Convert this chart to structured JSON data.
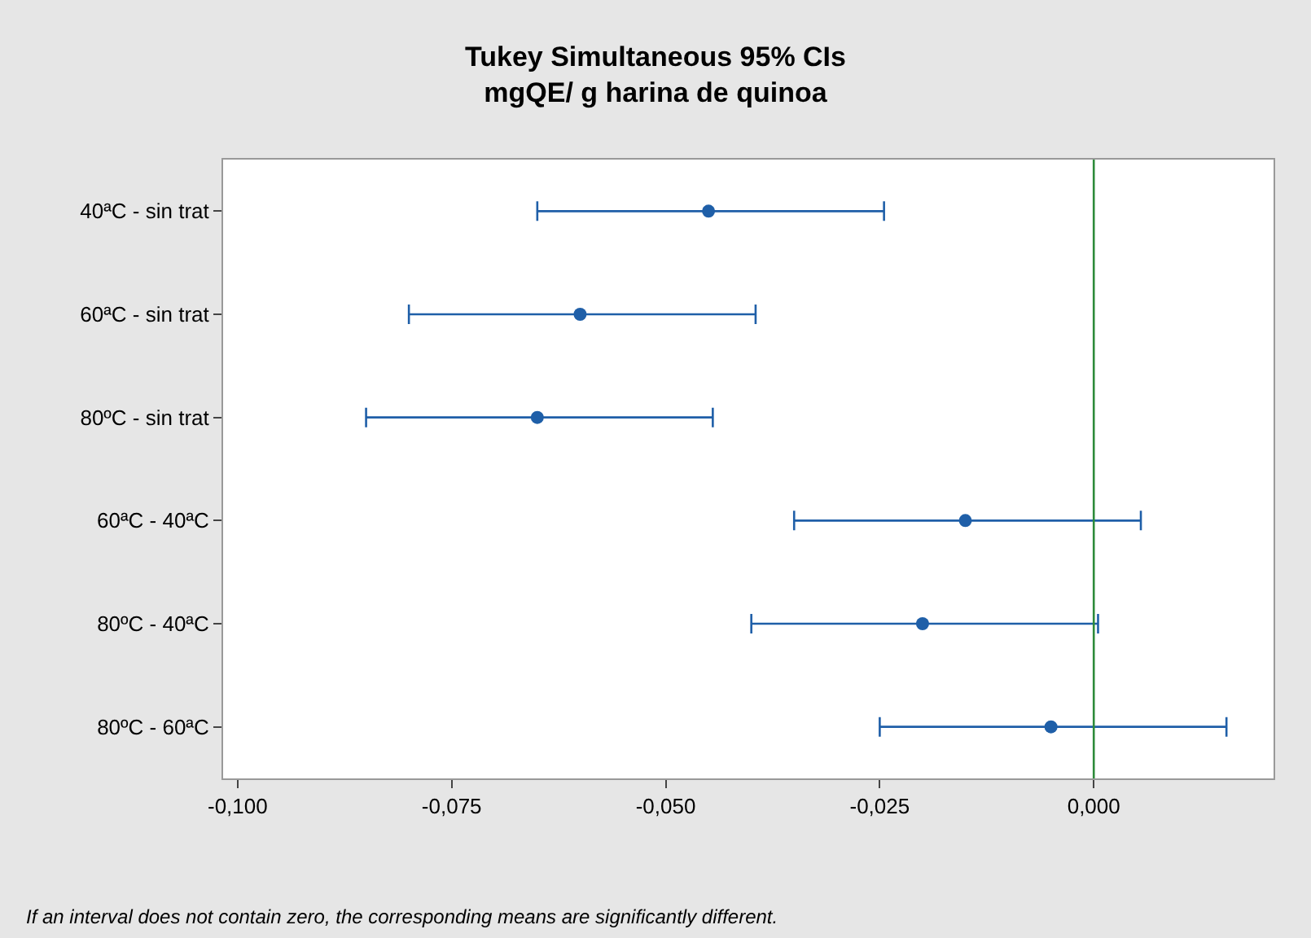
{
  "chart_data": {
    "type": "scatter",
    "orientation": "horizontal",
    "title": "Tukey Simultaneous 95% CIs",
    "subtitle": "mgQE/ g harina de quinoa",
    "categories": [
      "40ªC - sin trat",
      "60ªC - sin trat",
      "80ºC - sin trat",
      "60ªC - 40ªC",
      "80ºC - 40ªC",
      "80ºC - 60ªC"
    ],
    "values": [
      -0.045,
      -0.06,
      -0.065,
      -0.015,
      -0.02,
      -0.005
    ],
    "errors": [
      [
        -0.065,
        -0.0245
      ],
      [
        -0.08,
        -0.0395
      ],
      [
        -0.085,
        -0.0445
      ],
      [
        -0.035,
        0.0055
      ],
      [
        -0.04,
        0.0005
      ],
      [
        -0.025,
        0.0155
      ]
    ],
    "color": "#1f5fa8",
    "marker": "circle",
    "xlim": [
      -0.1017,
      0.021
    ],
    "xticks": [
      {
        "value": -0.1,
        "label": "-0,100"
      },
      {
        "value": -0.075,
        "label": "-0,075"
      },
      {
        "value": -0.05,
        "label": "-0,050"
      },
      {
        "value": -0.025,
        "label": "-0,025"
      },
      {
        "value": 0,
        "label": "0,000"
      }
    ],
    "ref_lines": [
      {
        "axis": "x",
        "value": 0,
        "color": "#2e8b3a"
      }
    ],
    "legend": false,
    "annotations": [
      "If an interval does not contain zero, the corresponding means are significantly different."
    ]
  }
}
